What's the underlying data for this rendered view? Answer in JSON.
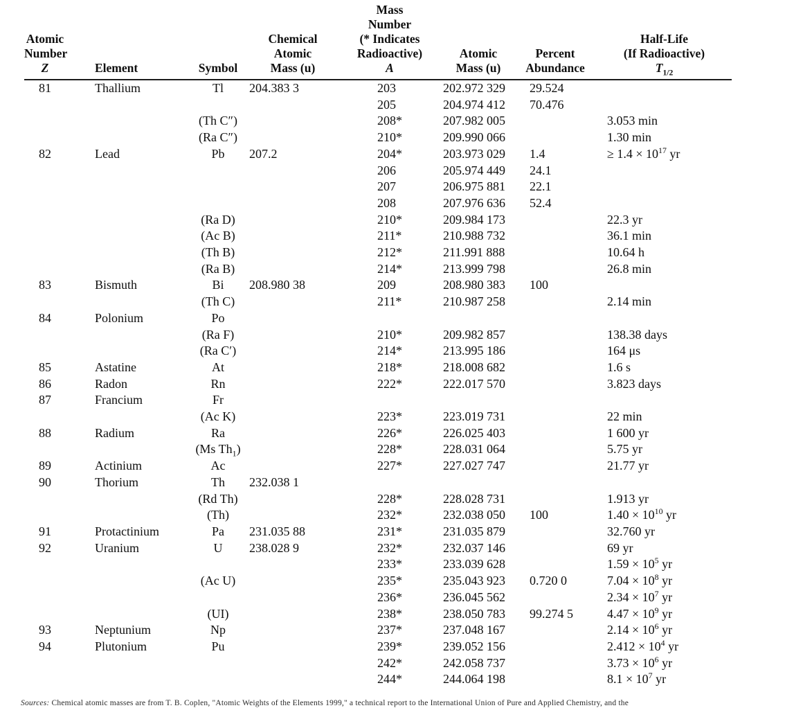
{
  "table": {
    "columns": [
      {
        "id": "atomic-number",
        "lines": [
          "Atomic",
          "Number",
          "*Z*"
        ]
      },
      {
        "id": "element",
        "lines": [
          "Element"
        ]
      },
      {
        "id": "symbol",
        "lines": [
          "Symbol"
        ]
      },
      {
        "id": "chemical-atomic-mass",
        "lines": [
          "Chemical",
          "Atomic",
          "Mass (u)"
        ]
      },
      {
        "id": "mass-number",
        "lines": [
          "Mass",
          "Number",
          "(* Indicates",
          "Radioactive)",
          "*A*"
        ]
      },
      {
        "id": "atomic-mass",
        "lines": [
          "Atomic",
          "Mass (u)"
        ]
      },
      {
        "id": "percent-abundance",
        "lines": [
          "Percent",
          "Abundance"
        ]
      },
      {
        "id": "half-life",
        "lines": [
          "Half-Life",
          "(If Radioactive)",
          "*T*_{1/2}"
        ]
      }
    ],
    "rows": [
      {
        "z": "81",
        "element": "Thallium",
        "symbol": "Tl",
        "chem_mass": "204.383 3",
        "a": "203",
        "mass": "202.972 329",
        "abundance": "29.524",
        "half_life": ""
      },
      {
        "z": "",
        "element": "",
        "symbol": "",
        "chem_mass": "",
        "a": "205",
        "mass": "204.974 412",
        "abundance": "70.476",
        "half_life": ""
      },
      {
        "z": "",
        "element": "",
        "symbol": "(Th C″)",
        "chem_mass": "",
        "a": "208*",
        "mass": "207.982 005",
        "abundance": "",
        "half_life": "3.053 min"
      },
      {
        "z": "",
        "element": "",
        "symbol": "(Ra C″)",
        "chem_mass": "",
        "a": "210*",
        "mass": "209.990 066",
        "abundance": "",
        "half_life": "1.30 min"
      },
      {
        "z": "82",
        "element": "Lead",
        "symbol": "Pb",
        "chem_mass": "207.2",
        "a": "204*",
        "mass": "203.973 029",
        "abundance": "1.4",
        "half_life": "≥ 1.4 × 10^{17} yr"
      },
      {
        "z": "",
        "element": "",
        "symbol": "",
        "chem_mass": "",
        "a": "206",
        "mass": "205.974 449",
        "abundance": "24.1",
        "half_life": ""
      },
      {
        "z": "",
        "element": "",
        "symbol": "",
        "chem_mass": "",
        "a": "207",
        "mass": "206.975 881",
        "abundance": "22.1",
        "half_life": ""
      },
      {
        "z": "",
        "element": "",
        "symbol": "",
        "chem_mass": "",
        "a": "208",
        "mass": "207.976 636",
        "abundance": "52.4",
        "half_life": ""
      },
      {
        "z": "",
        "element": "",
        "symbol": "(Ra D)",
        "chem_mass": "",
        "a": "210*",
        "mass": "209.984 173",
        "abundance": "",
        "half_life": "22.3 yr"
      },
      {
        "z": "",
        "element": "",
        "symbol": "(Ac B)",
        "chem_mass": "",
        "a": "211*",
        "mass": "210.988 732",
        "abundance": "",
        "half_life": "36.1 min"
      },
      {
        "z": "",
        "element": "",
        "symbol": "(Th B)",
        "chem_mass": "",
        "a": "212*",
        "mass": "211.991 888",
        "abundance": "",
        "half_life": "10.64 h"
      },
      {
        "z": "",
        "element": "",
        "symbol": "(Ra B)",
        "chem_mass": "",
        "a": "214*",
        "mass": "213.999 798",
        "abundance": "",
        "half_life": "26.8 min"
      },
      {
        "z": "83",
        "element": "Bismuth",
        "symbol": "Bi",
        "chem_mass": "208.980 38",
        "a": "209",
        "mass": "208.980 383",
        "abundance": "100",
        "half_life": ""
      },
      {
        "z": "",
        "element": "",
        "symbol": "(Th C)",
        "chem_mass": "",
        "a": "211*",
        "mass": "210.987 258",
        "abundance": "",
        "half_life": "2.14 min"
      },
      {
        "z": "84",
        "element": "Polonium",
        "symbol": "Po",
        "chem_mass": "",
        "a": "",
        "mass": "",
        "abundance": "",
        "half_life": ""
      },
      {
        "z": "",
        "element": "",
        "symbol": "(Ra F)",
        "chem_mass": "",
        "a": "210*",
        "mass": "209.982 857",
        "abundance": "",
        "half_life": "138.38 days"
      },
      {
        "z": "",
        "element": "",
        "symbol": "(Ra C′)",
        "chem_mass": "",
        "a": "214*",
        "mass": "213.995 186",
        "abundance": "",
        "half_life": "164 μs"
      },
      {
        "z": "85",
        "element": "Astatine",
        "symbol": "At",
        "chem_mass": "",
        "a": "218*",
        "mass": "218.008 682",
        "abundance": "",
        "half_life": "1.6 s"
      },
      {
        "z": "86",
        "element": "Radon",
        "symbol": "Rn",
        "chem_mass": "",
        "a": "222*",
        "mass": "222.017 570",
        "abundance": "",
        "half_life": "3.823 days"
      },
      {
        "z": "87",
        "element": "Francium",
        "symbol": "Fr",
        "chem_mass": "",
        "a": "",
        "mass": "",
        "abundance": "",
        "half_life": ""
      },
      {
        "z": "",
        "element": "",
        "symbol": "(Ac K)",
        "chem_mass": "",
        "a": "223*",
        "mass": "223.019 731",
        "abundance": "",
        "half_life": "22 min"
      },
      {
        "z": "88",
        "element": "Radium",
        "symbol": "Ra",
        "chem_mass": "",
        "a": "226*",
        "mass": "226.025 403",
        "abundance": "",
        "half_life": "1 600 yr"
      },
      {
        "z": "",
        "element": "",
        "symbol": "(Ms Th_{1})",
        "chem_mass": "",
        "a": "228*",
        "mass": "228.031 064",
        "abundance": "",
        "half_life": "5.75 yr"
      },
      {
        "z": "89",
        "element": "Actinium",
        "symbol": "Ac",
        "chem_mass": "",
        "a": "227*",
        "mass": "227.027 747",
        "abundance": "",
        "half_life": "21.77 yr"
      },
      {
        "z": "90",
        "element": "Thorium",
        "symbol": "Th",
        "chem_mass": "232.038 1",
        "a": "",
        "mass": "",
        "abundance": "",
        "half_life": ""
      },
      {
        "z": "",
        "element": "",
        "symbol": "(Rd Th)",
        "chem_mass": "",
        "a": "228*",
        "mass": "228.028 731",
        "abundance": "",
        "half_life": "1.913 yr"
      },
      {
        "z": "",
        "element": "",
        "symbol": "(Th)",
        "chem_mass": "",
        "a": "232*",
        "mass": "232.038 050",
        "abundance": "100",
        "half_life": "1.40 × 10^{10} yr"
      },
      {
        "z": "91",
        "element": "Protactinium",
        "symbol": "Pa",
        "chem_mass": "231.035 88",
        "a": "231*",
        "mass": "231.035 879",
        "abundance": "",
        "half_life": "32.760 yr"
      },
      {
        "z": "92",
        "element": "Uranium",
        "symbol": "U",
        "chem_mass": "238.028 9",
        "a": "232*",
        "mass": "232.037 146",
        "abundance": "",
        "half_life": "69 yr"
      },
      {
        "z": "",
        "element": "",
        "symbol": "",
        "chem_mass": "",
        "a": "233*",
        "mass": "233.039 628",
        "abundance": "",
        "half_life": "1.59 × 10^{5} yr"
      },
      {
        "z": "",
        "element": "",
        "symbol": "(Ac U)",
        "chem_mass": "",
        "a": "235*",
        "mass": "235.043 923",
        "abundance": "0.720 0",
        "half_life": "7.04 × 10^{8} yr"
      },
      {
        "z": "",
        "element": "",
        "symbol": "",
        "chem_mass": "",
        "a": "236*",
        "mass": "236.045 562",
        "abundance": "",
        "half_life": "2.34 × 10^{7} yr"
      },
      {
        "z": "",
        "element": "",
        "symbol": "(UI)",
        "chem_mass": "",
        "a": "238*",
        "mass": "238.050 783",
        "abundance": "99.274 5",
        "half_life": "4.47 × 10^{9} yr"
      },
      {
        "z": "93",
        "element": "Neptunium",
        "symbol": "Np",
        "chem_mass": "",
        "a": "237*",
        "mass": "237.048 167",
        "abundance": "",
        "half_life": "2.14 × 10^{6} yr"
      },
      {
        "z": "94",
        "element": "Plutonium",
        "symbol": "Pu",
        "chem_mass": "",
        "a": "239*",
        "mass": "239.052 156",
        "abundance": "",
        "half_life": "2.412 × 10^{4} yr"
      },
      {
        "z": "",
        "element": "",
        "symbol": "",
        "chem_mass": "",
        "a": "242*",
        "mass": "242.058 737",
        "abundance": "",
        "half_life": "3.73 × 10^{6} yr"
      },
      {
        "z": "",
        "element": "",
        "symbol": "",
        "chem_mass": "",
        "a": "244*",
        "mass": "244.064 198",
        "abundance": "",
        "half_life": "8.1 × 10^{7} yr"
      }
    ]
  },
  "footnote": {
    "text": "*Sources:* Chemical atomic masses are from T. B. Coplen, \"Atomic Weights of the Elements 1999,\" a technical report to the International Union of Pure and Applied Chemistry, and the"
  }
}
